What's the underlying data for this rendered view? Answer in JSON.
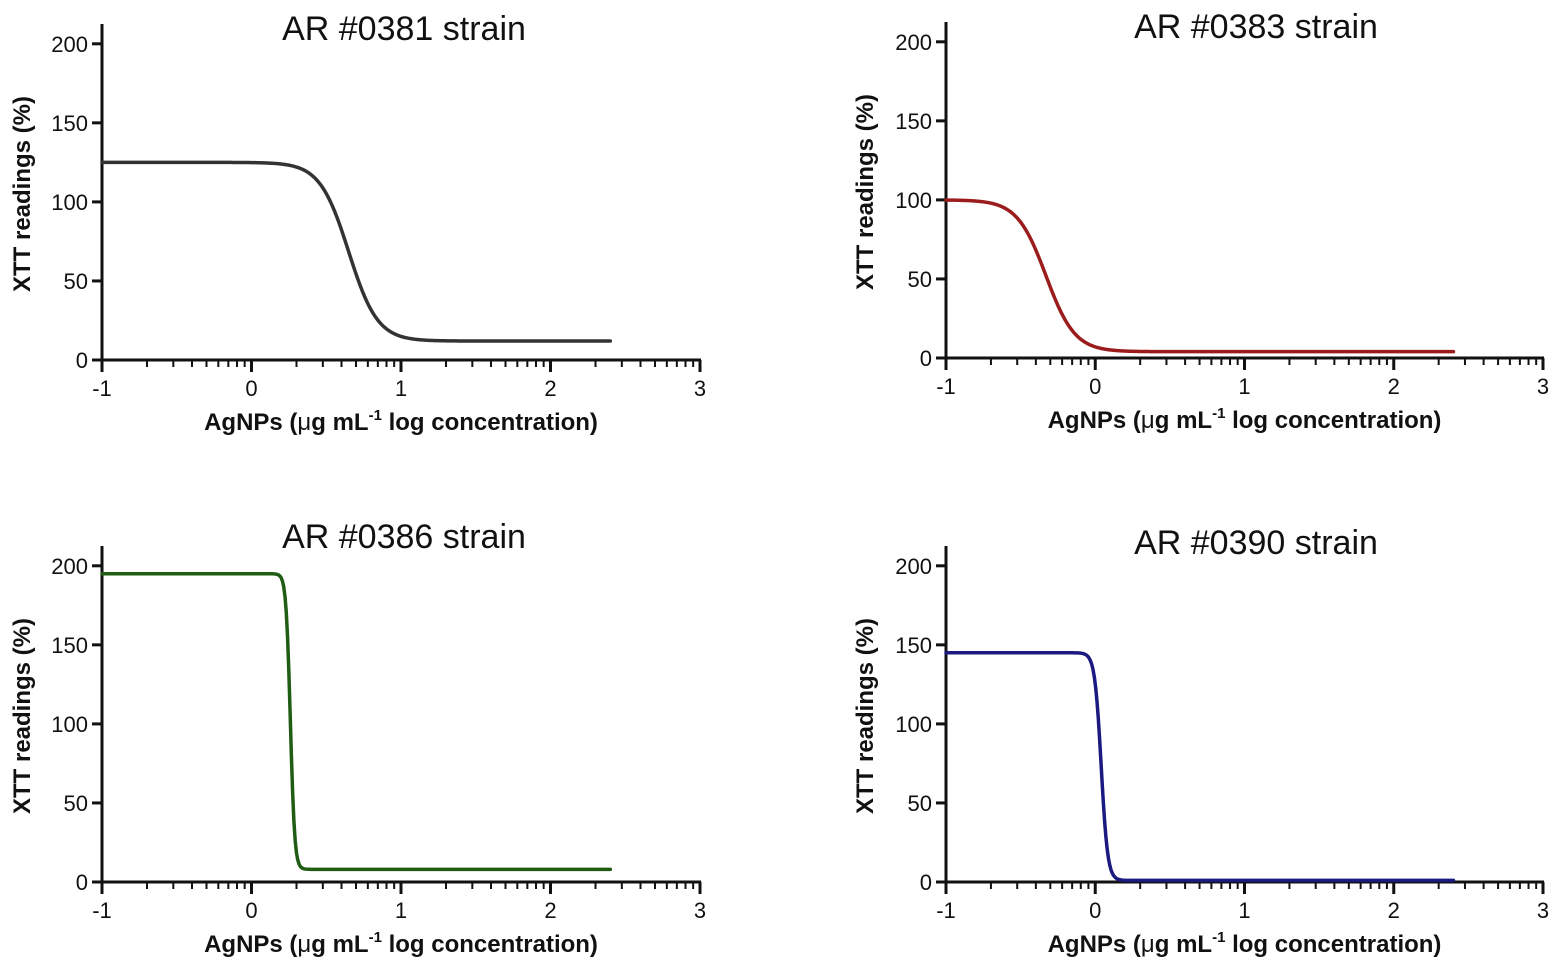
{
  "chart_data": [
    {
      "type": "line",
      "title": "AR #0381 strain",
      "xlabel_prefix": "AgNPs (",
      "xlabel_mu": "μ",
      "xlabel_unit": "g mL",
      "xlabel_sup": "-1",
      "xlabel_suffix": " log concentration)",
      "ylabel": "XTT readings (%)",
      "xlim": [
        -1,
        3
      ],
      "ylim": [
        0,
        210
      ],
      "xticks": [
        "-1",
        "0",
        "1",
        "2",
        "3"
      ],
      "yticks": [
        "0",
        "50",
        "100",
        "150",
        "200"
      ],
      "color": "#333333",
      "series": [
        {
          "name": "AR #0381 strain",
          "model": "four-parameter logistic",
          "x_range": [
            -1,
            2.4
          ],
          "top": 125,
          "bottom": 12,
          "log_ic50": 0.65,
          "hill_slope": 4.5
        }
      ]
    },
    {
      "type": "line",
      "title": "AR #0383 strain",
      "xlabel_prefix": "AgNPs (",
      "xlabel_mu": "μ",
      "xlabel_unit": "g mL",
      "xlabel_sup": "-1",
      "xlabel_suffix": " log concentration)",
      "ylabel": "XTT readings (%)",
      "xlim": [
        -1,
        3
      ],
      "ylim": [
        0,
        210
      ],
      "xticks": [
        "-1",
        "0",
        "1",
        "2",
        "3"
      ],
      "yticks": [
        "0",
        "50",
        "100",
        "150",
        "200"
      ],
      "color": "#9b1c1c",
      "series": [
        {
          "name": "AR #0383 strain",
          "model": "four-parameter logistic",
          "x_range": [
            -1,
            2.4
          ],
          "top": 100,
          "bottom": 4,
          "log_ic50": -0.33,
          "hill_slope": 4.5
        }
      ]
    },
    {
      "type": "line",
      "title": "AR #0386 strain",
      "xlabel_prefix": "AgNPs (",
      "xlabel_mu": "μ",
      "xlabel_unit": "g mL",
      "xlabel_sup": "-1",
      "xlabel_suffix": " log concentration)",
      "ylabel": "XTT readings (%)",
      "xlim": [
        -1,
        3
      ],
      "ylim": [
        0,
        210
      ],
      "xticks": [
        "-1",
        "0",
        "1",
        "2",
        "3"
      ],
      "yticks": [
        "0",
        "50",
        "100",
        "150",
        "200"
      ],
      "color": "#1f5c14",
      "series": [
        {
          "name": "AR #0386 strain",
          "model": "four-parameter logistic",
          "x_range": [
            -1,
            2.4
          ],
          "top": 195,
          "bottom": 8,
          "log_ic50": 0.26,
          "hill_slope": 30
        }
      ]
    },
    {
      "type": "line",
      "title": "AR #0390 strain",
      "xlabel_prefix": "AgNPs (",
      "xlabel_mu": "μ",
      "xlabel_unit": "g mL",
      "xlabel_sup": "-1",
      "xlabel_suffix": " log concentration)",
      "ylabel": "XTT readings (%)",
      "xlim": [
        -1,
        3
      ],
      "ylim": [
        0,
        210
      ],
      "xticks": [
        "-1",
        "0",
        "1",
        "2",
        "3"
      ],
      "yticks": [
        "0",
        "50",
        "100",
        "150",
        "200"
      ],
      "color": "#1a1a80",
      "series": [
        {
          "name": "AR #0390 strain",
          "model": "four-parameter logistic",
          "x_range": [
            -1,
            2.4
          ],
          "top": 145,
          "bottom": 1,
          "log_ic50": 0.04,
          "hill_slope": 20
        }
      ]
    }
  ]
}
